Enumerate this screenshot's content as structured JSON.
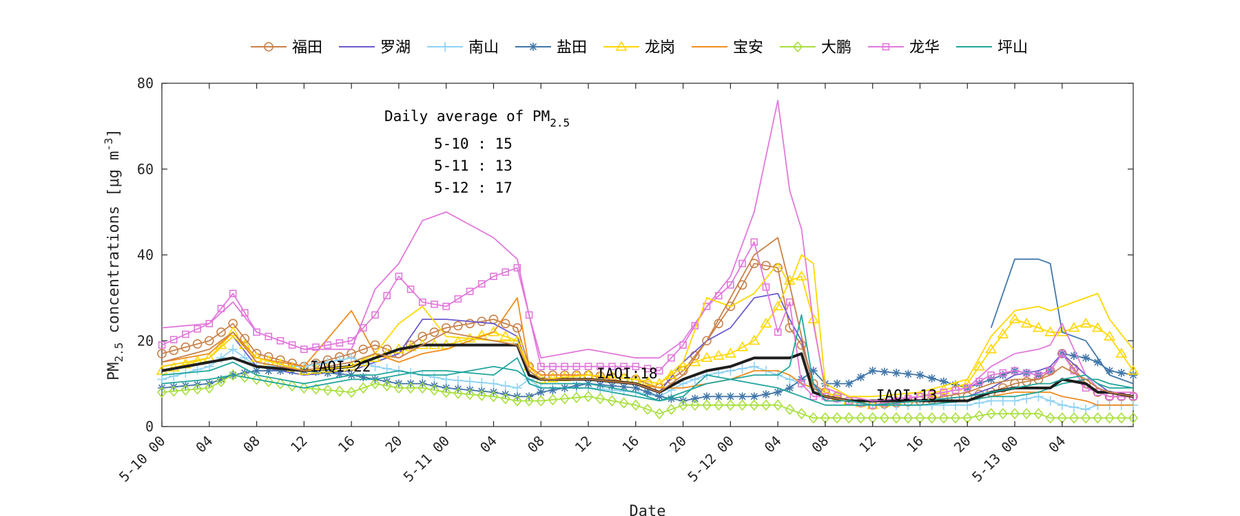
{
  "chart_data": {
    "type": "line",
    "xlabel": "Date",
    "ylabel_main": "PM",
    "ylabel_sub": "2.5",
    "ylabel_rest": " concentrations [μg m",
    "ylabel_sup": "-3",
    "ylabel_end": "]",
    "ylim": [
      0,
      80
    ],
    "yticks": [
      0,
      20,
      40,
      60,
      80
    ],
    "xlim": [
      0,
      82
    ],
    "xticks": [
      {
        "h": 0,
        "label": "5-10 00"
      },
      {
        "h": 4,
        "label": "04"
      },
      {
        "h": 8,
        "label": "08"
      },
      {
        "h": 12,
        "label": "12"
      },
      {
        "h": 16,
        "label": "16"
      },
      {
        "h": 20,
        "label": "20"
      },
      {
        "h": 24,
        "label": "5-11 00"
      },
      {
        "h": 28,
        "label": "04"
      },
      {
        "h": 32,
        "label": "08"
      },
      {
        "h": 36,
        "label": "12"
      },
      {
        "h": 40,
        "label": "16"
      },
      {
        "h": 44,
        "label": "20"
      },
      {
        "h": 48,
        "label": "5-12 00"
      },
      {
        "h": 52,
        "label": "04"
      },
      {
        "h": 56,
        "label": "08"
      },
      {
        "h": 60,
        "label": "12"
      },
      {
        "h": 64,
        "label": "16"
      },
      {
        "h": 68,
        "label": "20"
      },
      {
        "h": 72,
        "label": "5-13 00"
      },
      {
        "h": 76,
        "label": "04"
      }
    ],
    "grid": false,
    "legend_position": "top",
    "annotation": {
      "title": "Daily average of PM",
      "title_sub": "2.5",
      "lines": [
        "5-10 : 15",
        "5-11 : 13",
        "5-12 : 17"
      ]
    },
    "iaqi_labels": [
      {
        "h": 12.5,
        "y": 12.8,
        "text": "IAQI:22"
      },
      {
        "h": 36.7,
        "y": 11.2,
        "text": "IAQI:18"
      },
      {
        "h": 60.3,
        "y": 6.2,
        "text": "IAQI:13"
      }
    ],
    "keypoints": [
      0,
      4,
      6,
      8,
      12,
      16,
      18,
      20,
      22,
      24,
      28,
      30,
      31,
      32,
      36,
      40,
      42,
      44,
      46,
      48,
      50,
      52,
      53,
      54,
      55,
      56,
      58,
      60,
      64,
      68,
      70,
      72,
      74,
      75,
      76,
      78,
      79,
      80,
      82
    ],
    "series": [
      {
        "name": "福田",
        "color": "#c8814a",
        "marker": "circle",
        "values": [
          17,
          20,
          24,
          17,
          14,
          17,
          19,
          17,
          21,
          23,
          25,
          23,
          14,
          12,
          12,
          11,
          9,
          13,
          20,
          28,
          38,
          37,
          23,
          19,
          10,
          8,
          6,
          5,
          6,
          7,
          8,
          10,
          11,
          13,
          17,
          10,
          8,
          7,
          7
        ]
      },
      {
        "name": "罗湖",
        "color": "#6a5acd",
        "marker": "none",
        "values": [
          14,
          16,
          21,
          14,
          12,
          13,
          15,
          17,
          25,
          25,
          24,
          21,
          13,
          11,
          11,
          10,
          8,
          15,
          20,
          23,
          30,
          31,
          25,
          20,
          10,
          7,
          6,
          5,
          6,
          7,
          9,
          12,
          13,
          14,
          17,
          12,
          10,
          8,
          7
        ]
      },
      {
        "name": "南山",
        "color": "#8fd2f5",
        "marker": "plus",
        "values": [
          11,
          14,
          18,
          14,
          14,
          16,
          14,
          13,
          12,
          11,
          10,
          9,
          11,
          9,
          9,
          8,
          7,
          10,
          12,
          13,
          14,
          12,
          11,
          10,
          9,
          7,
          6,
          5,
          5,
          5,
          6,
          6,
          7,
          6,
          5,
          4,
          5,
          5,
          5
        ]
      },
      {
        "name": "盐田",
        "color": "#4177aa",
        "marker": "star",
        "values": [
          9,
          10,
          12,
          13,
          13,
          12,
          11,
          10,
          10,
          9,
          8,
          7,
          7,
          8,
          10,
          9,
          7,
          6,
          7,
          7,
          7,
          8,
          9,
          11,
          13,
          10,
          10,
          13,
          12,
          9,
          11,
          13,
          12,
          13,
          17,
          16,
          15,
          13,
          12
        ]
      },
      {
        "name": "龙岗",
        "color": "#ffd700",
        "marker": "triangle",
        "values": [
          13,
          16,
          22,
          16,
          13,
          14,
          16,
          18,
          19,
          19,
          22,
          20,
          14,
          11,
          12,
          11,
          10,
          14,
          16,
          17,
          20,
          28,
          34,
          35,
          25,
          8,
          6,
          5,
          7,
          10,
          18,
          25,
          23,
          22,
          22,
          24,
          23,
          21,
          13
        ]
      },
      {
        "name": "宝安",
        "color": "#f08c1e",
        "marker": "none",
        "values": [
          15,
          17,
          22,
          16,
          14,
          27,
          17,
          15,
          17,
          18,
          22,
          30,
          14,
          12,
          12,
          10,
          9,
          9,
          10,
          11,
          13,
          13,
          12,
          10,
          9,
          7,
          6,
          6,
          6,
          6,
          7,
          8,
          8,
          8,
          7,
          6,
          5,
          5,
          5
        ]
      },
      {
        "name": "大鹏",
        "color": "#a8e03c",
        "marker": "diamond",
        "values": [
          8,
          9,
          12,
          11,
          9,
          8,
          10,
          9,
          9,
          8,
          7,
          6,
          6,
          6,
          7,
          5,
          3,
          5,
          5,
          5,
          5,
          5,
          4,
          3,
          2,
          2,
          2,
          2,
          2,
          2,
          3,
          3,
          3,
          2,
          2,
          2,
          2,
          2,
          2
        ]
      },
      {
        "name": "龙华",
        "color": "#e278dc",
        "marker": "square",
        "values": [
          19,
          24,
          31,
          22,
          18,
          20,
          26,
          35,
          29,
          28,
          35,
          37,
          26,
          14,
          14,
          14,
          13,
          19,
          28,
          33,
          43,
          22,
          29,
          10,
          7,
          7,
          6,
          5,
          7,
          9,
          12,
          13,
          12,
          13,
          17,
          9,
          8,
          7,
          7
        ]
      },
      {
        "name": "坪山",
        "color": "#20a59c",
        "marker": "none",
        "values": [
          10,
          11,
          12,
          11,
          9,
          11,
          11,
          12,
          13,
          13,
          12,
          16,
          10,
          9,
          9,
          7,
          6,
          7,
          12,
          11,
          10,
          9,
          8,
          7,
          6,
          5,
          5,
          5,
          5,
          6,
          7,
          7,
          8,
          9,
          10,
          11,
          11,
          10,
          9
        ]
      },
      {
        "name": "",
        "color": "#1e1e1e",
        "marker": "none",
        "values": [
          13,
          15,
          16,
          14,
          13,
          14,
          16,
          18,
          19,
          19,
          19,
          19,
          12,
          11,
          11,
          10,
          8,
          11,
          13,
          14,
          16,
          16,
          16,
          17,
          8,
          7,
          6,
          6,
          6,
          6,
          8,
          9,
          9,
          9,
          11,
          10,
          8,
          8,
          7
        ]
      },
      {
        "name": "",
        "color": "#4177aa",
        "marker": "none",
        "values": [
          null,
          null,
          null,
          null,
          null,
          null,
          null,
          null,
          null,
          null,
          null,
          null,
          null,
          null,
          null,
          null,
          null,
          null,
          null,
          null,
          null,
          null,
          null,
          null,
          null,
          null,
          null,
          null,
          null,
          null,
          23,
          39,
          39,
          38,
          22,
          20,
          16,
          12,
          10
        ]
      },
      {
        "name": "",
        "color": "#e278dc",
        "marker": "none",
        "values": [
          23,
          24,
          29,
          22,
          18,
          18,
          32,
          38,
          48,
          50,
          44,
          39,
          26,
          16,
          18,
          16,
          16,
          20,
          28,
          35,
          50,
          76,
          55,
          46,
          24,
          9,
          7,
          6,
          7,
          9,
          14,
          17,
          18,
          19,
          24,
          12,
          9,
          8,
          8
        ]
      },
      {
        "name": "",
        "color": "#ffd700",
        "marker": "none",
        "values": [
          14,
          16,
          21,
          16,
          13,
          14,
          17,
          24,
          28,
          21,
          20,
          20,
          13,
          11,
          12,
          11,
          10,
          15,
          30,
          28,
          31,
          38,
          33,
          40,
          38,
          10,
          7,
          7,
          8,
          11,
          21,
          27,
          28,
          27,
          28,
          30,
          31,
          25,
          18
        ]
      },
      {
        "name": "",
        "color": "#c8814a",
        "marker": "none",
        "values": [
          15,
          18,
          22,
          15,
          13,
          15,
          17,
          16,
          19,
          22,
          20,
          19,
          13,
          11,
          11,
          10,
          8,
          12,
          20,
          30,
          40,
          44,
          33,
          21,
          9,
          7,
          6,
          5,
          6,
          8,
          10,
          11,
          11,
          12,
          14,
          11,
          9,
          8,
          7
        ]
      },
      {
        "name": "",
        "color": "#20a59c",
        "marker": "none",
        "values": [
          12,
          13,
          15,
          12,
          10,
          12,
          12,
          13,
          12,
          12,
          14,
          13,
          11,
          10,
          10,
          8,
          6,
          8,
          10,
          11,
          12,
          12,
          14,
          26,
          10,
          6,
          6,
          5,
          6,
          7,
          8,
          9,
          10,
          10,
          11,
          12,
          10,
          9,
          9
        ]
      }
    ]
  }
}
